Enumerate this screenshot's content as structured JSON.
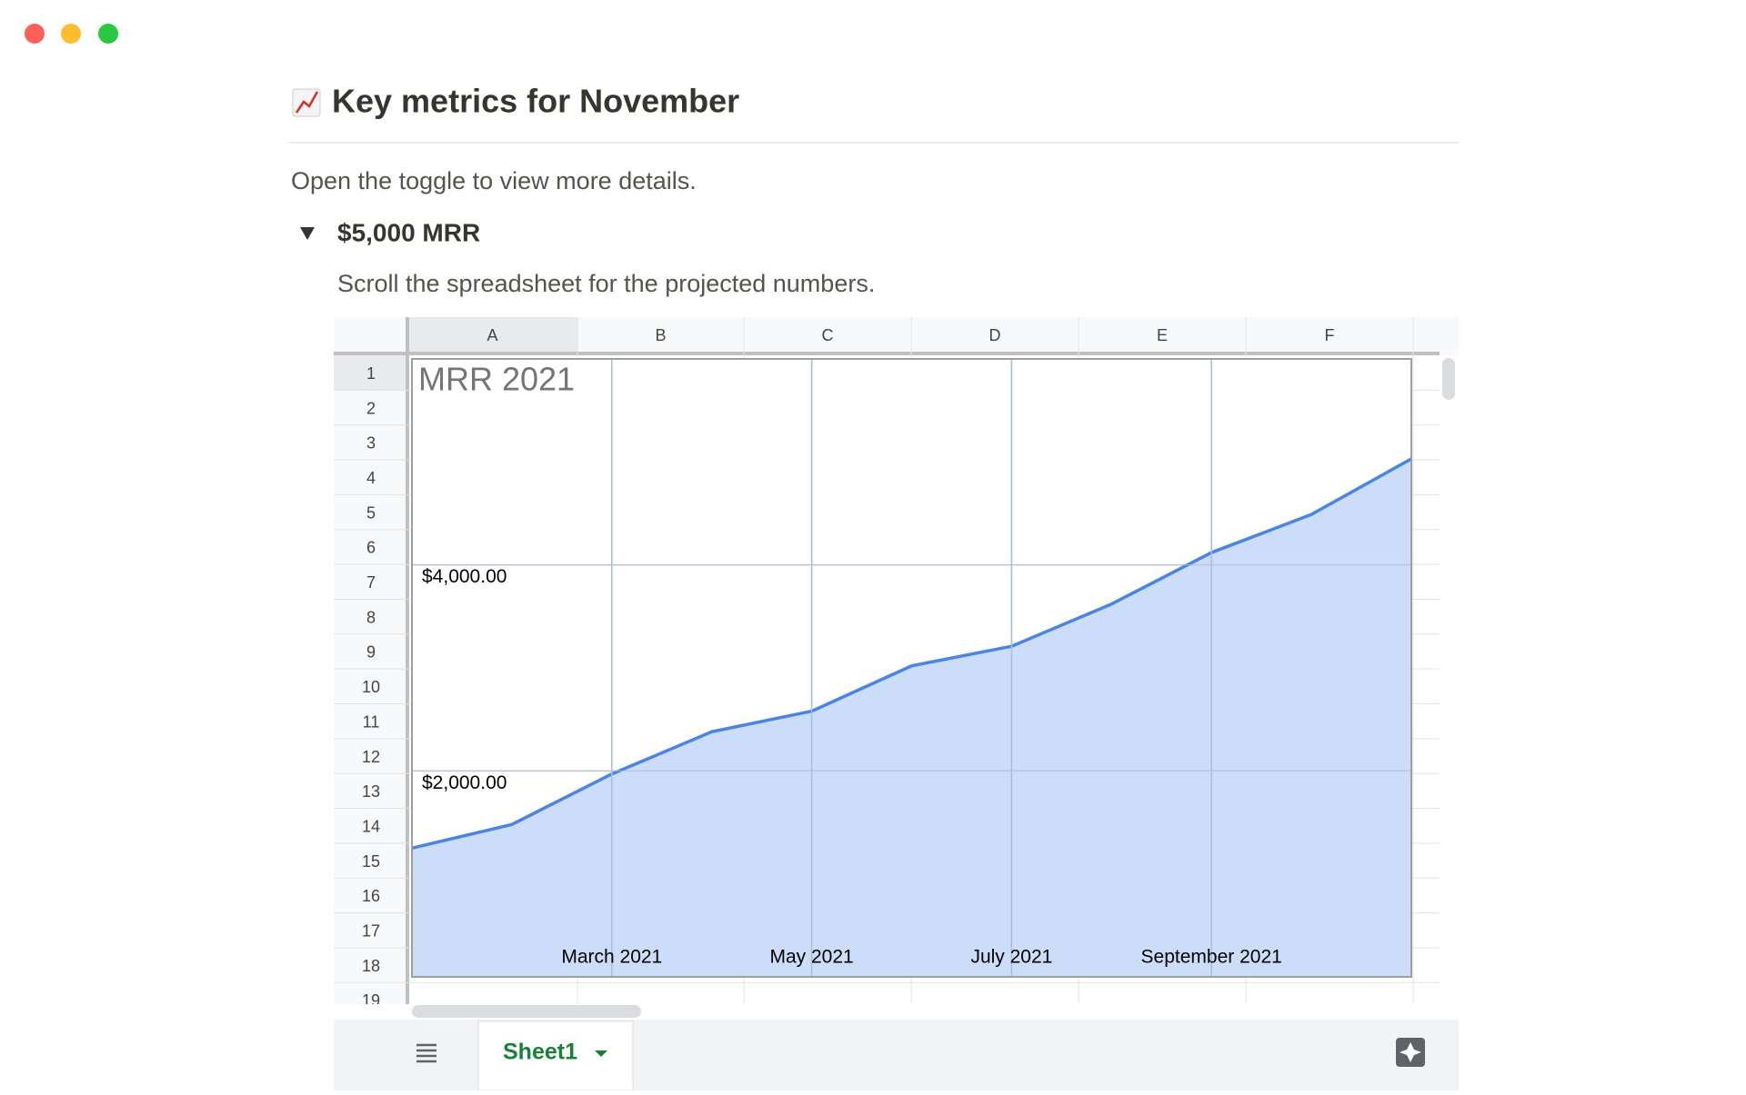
{
  "header": {
    "title": "Key metrics for November"
  },
  "intro": "Open the toggle to view more details.",
  "toggle": {
    "title": "$5,000 MRR",
    "text": "Scroll the spreadsheet for the projected numbers."
  },
  "sheet": {
    "columns": [
      "A",
      "B",
      "C",
      "D",
      "E",
      "F"
    ],
    "rows": [
      1,
      2,
      3,
      4,
      5,
      6,
      7,
      8,
      9,
      10,
      11,
      12,
      13,
      14,
      15,
      16,
      17,
      18,
      19
    ],
    "tab": "Sheet1"
  },
  "chart_data": {
    "type": "area",
    "title": "MRR 2021",
    "categories": [
      null,
      null,
      "March 2021",
      null,
      "May 2021",
      null,
      "July 2021",
      null,
      "September 2021",
      null,
      null
    ],
    "values": [
      1250,
      1480,
      1970,
      2380,
      2580,
      3020,
      3210,
      3620,
      4120,
      4490,
      5030
    ],
    "color": "#4a84e4",
    "fill_color": "#c6d9f8",
    "ylim": [
      0,
      6000
    ],
    "yticks": [
      {
        "value": 2000,
        "label": "$2,000.00"
      },
      {
        "value": 4000,
        "label": "$4,000.00"
      }
    ],
    "grid": true
  }
}
